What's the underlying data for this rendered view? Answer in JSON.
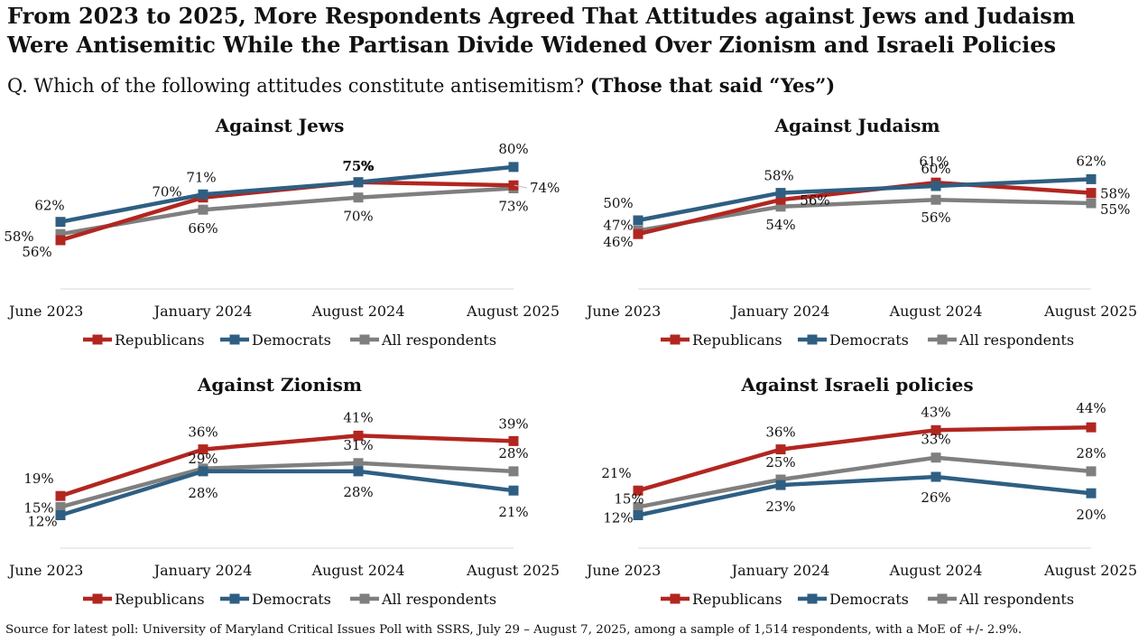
{
  "title_lines": [
    "From 2023 to 2025, More Respondents Agreed That Attitudes against Jews and Judaism",
    "Were Antisemitic While the Partisan Divide Widened Over Zionism and Israeli Policies"
  ],
  "question": {
    "text": "Q. Which of the following attitudes constitute antisemitism?",
    "emphasis": "(Those that said “Yes”)"
  },
  "source": "Source for latest poll: University of Maryland Critical Issues Poll with SSRS, July 29 – August 7, 2025, among a sample of 1,514 respondents, with a MoE of +/- 2.9%.",
  "colors": {
    "republicans": "#b22620",
    "democrats": "#2e5f82",
    "all": "#7f7f7f",
    "axis": "#d9d9d9"
  },
  "chart_data": [
    {
      "type": "line",
      "title": "Against Jews",
      "categories": [
        "June 2023",
        "January 2024",
        "August 2024",
        "August 2025"
      ],
      "ylim": [
        40,
        85
      ],
      "series": [
        {
          "name": "Republicans",
          "key": "republicans",
          "values": [
            56,
            70,
            75,
            74
          ],
          "labels": [
            "56%",
            "70%",
            "75%",
            "74%"
          ]
        },
        {
          "name": "Democrats",
          "key": "democrats",
          "values": [
            62,
            71,
            75,
            80
          ],
          "labels": [
            "62%",
            "71%",
            "75%",
            "80%"
          ]
        },
        {
          "name": "All respondents",
          "key": "all",
          "values": [
            58,
            66,
            70,
            73
          ],
          "labels": [
            "58%",
            "66%",
            "70%",
            "73%"
          ]
        }
      ],
      "legend": "bottom"
    },
    {
      "type": "line",
      "title": "Against Judaism",
      "categories": [
        "June 2023",
        "January 2024",
        "August 2024",
        "August 2025"
      ],
      "ylim": [
        30,
        70
      ],
      "series": [
        {
          "name": "Republicans",
          "key": "republicans",
          "values": [
            46,
            56,
            61,
            58
          ],
          "labels": [
            "46%",
            "56%",
            "61%",
            "58%"
          ]
        },
        {
          "name": "Democrats",
          "key": "democrats",
          "values": [
            50,
            58,
            60,
            62
          ],
          "labels": [
            "50%",
            "58%",
            "60%",
            "62%"
          ]
        },
        {
          "name": "All respondents",
          "key": "all",
          "values": [
            47,
            54,
            56,
            55
          ],
          "labels": [
            "47%",
            "54%",
            "56%",
            "55%"
          ]
        }
      ],
      "legend": "bottom"
    },
    {
      "type": "line",
      "title": "Against Zionism",
      "categories": [
        "June 2023",
        "January 2024",
        "August 2024",
        "August 2025"
      ],
      "ylim": [
        0,
        50
      ],
      "series": [
        {
          "name": "Republicans",
          "key": "republicans",
          "values": [
            19,
            36,
            41,
            39
          ],
          "labels": [
            "19%",
            "36%",
            "41%",
            "39%"
          ]
        },
        {
          "name": "Democrats",
          "key": "democrats",
          "values": [
            12,
            28,
            28,
            21
          ],
          "labels": [
            "12%",
            "28%",
            "28%",
            "21%"
          ]
        },
        {
          "name": "All respondents",
          "key": "all",
          "values": [
            15,
            29,
            31,
            28
          ],
          "labels": [
            "15%",
            "29%",
            "31%",
            "28%"
          ]
        }
      ],
      "legend": "bottom"
    },
    {
      "type": "line",
      "title": "Against Israeli policies",
      "categories": [
        "June 2023",
        "January 2024",
        "August 2024",
        "August 2025"
      ],
      "ylim": [
        0,
        50
      ],
      "series": [
        {
          "name": "Republicans",
          "key": "republicans",
          "values": [
            21,
            36,
            43,
            44
          ],
          "labels": [
            "21%",
            "36%",
            "43%",
            "44%"
          ]
        },
        {
          "name": "Democrats",
          "key": "democrats",
          "values": [
            12,
            23,
            26,
            20
          ],
          "labels": [
            "12%",
            "23%",
            "26%",
            "20%"
          ]
        },
        {
          "name": "All respondents",
          "key": "all",
          "values": [
            15,
            25,
            33,
            28
          ],
          "labels": [
            "15%",
            "25%",
            "33%",
            "28%"
          ]
        }
      ],
      "legend": "bottom"
    }
  ]
}
